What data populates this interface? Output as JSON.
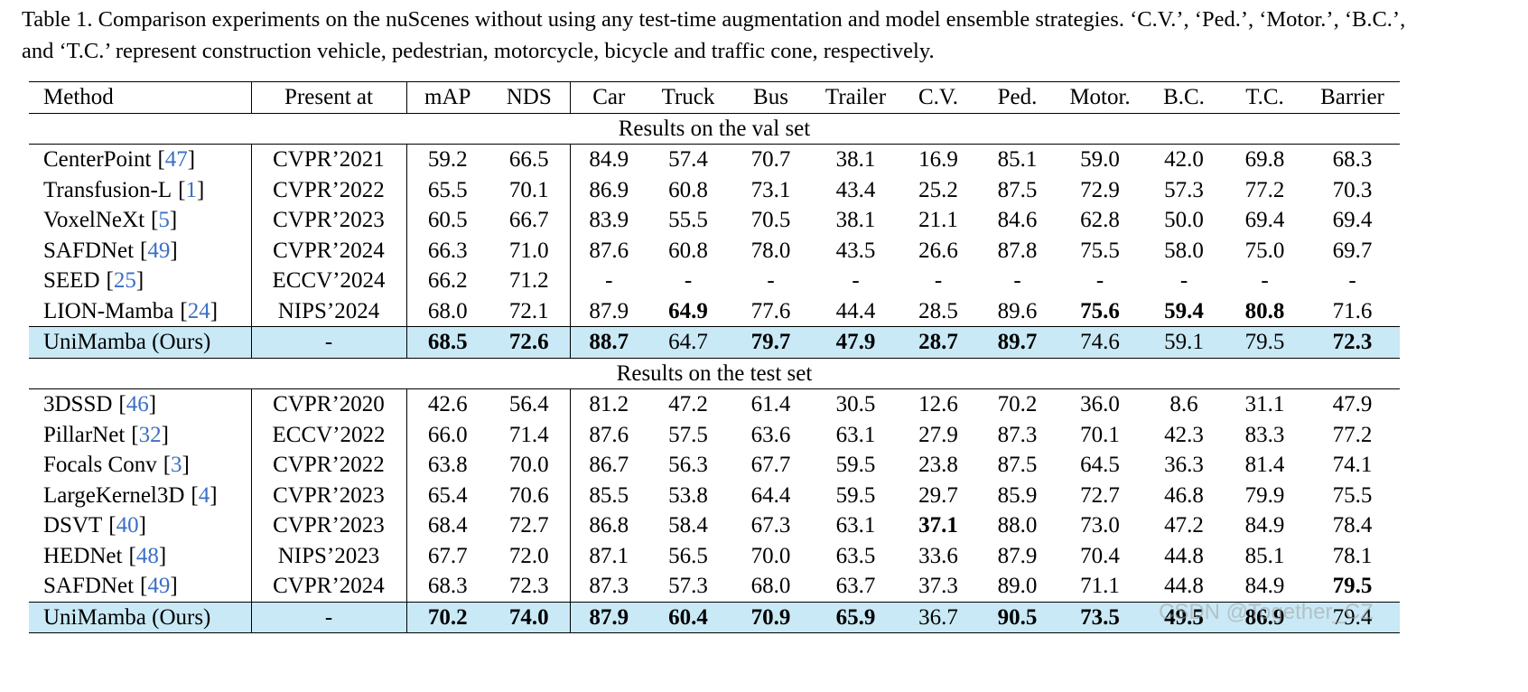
{
  "caption": "Table 1. Comparison experiments on the nuScenes without using any test-time augmentation and model ensemble strategies. ‘C.V.’, ‘Ped.’, ‘Motor.’, ‘B.C.’, and ‘T.C.’ represent construction vehicle, pedestrian, motorcycle, bicycle and traffic cone, respectively.",
  "table": {
    "cite_brackets": [
      "[",
      "]"
    ],
    "cite_color": "#3a6fc4",
    "highlight_color": "#c9e9f6",
    "header": [
      "Method",
      "Present at",
      "mAP",
      "NDS",
      "Car",
      "Truck",
      "Bus",
      "Trailer",
      "C.V.",
      "Ped.",
      "Motor.",
      "B.C.",
      "T.C.",
      "Barrier"
    ],
    "sections": [
      {
        "title": "Results on the val set",
        "rows": [
          {
            "method": "CenterPoint",
            "cite": "47",
            "venue": "CVPR’2021",
            "values": [
              "59.2",
              "66.5",
              "84.9",
              "57.4",
              "70.7",
              "38.1",
              "16.9",
              "85.1",
              "59.0",
              "42.0",
              "69.8",
              "68.3"
            ],
            "bold": []
          },
          {
            "method": "Transfusion-L",
            "cite": "1",
            "venue": "CVPR’2022",
            "values": [
              "65.5",
              "70.1",
              "86.9",
              "60.8",
              "73.1",
              "43.4",
              "25.2",
              "87.5",
              "72.9",
              "57.3",
              "77.2",
              "70.3"
            ],
            "bold": []
          },
          {
            "method": "VoxelNeXt",
            "cite": "5",
            "venue": "CVPR’2023",
            "values": [
              "60.5",
              "66.7",
              "83.9",
              "55.5",
              "70.5",
              "38.1",
              "21.1",
              "84.6",
              "62.8",
              "50.0",
              "69.4",
              "69.4"
            ],
            "bold": []
          },
          {
            "method": "SAFDNet",
            "cite": "49",
            "venue": "CVPR’2024",
            "values": [
              "66.3",
              "71.0",
              "87.6",
              "60.8",
              "78.0",
              "43.5",
              "26.6",
              "87.8",
              "75.5",
              "58.0",
              "75.0",
              "69.7"
            ],
            "bold": []
          },
          {
            "method": "SEED",
            "cite": "25",
            "venue": "ECCV’2024",
            "values": [
              "66.2",
              "71.2",
              "-",
              "-",
              "-",
              "-",
              "-",
              "-",
              "-",
              "-",
              "-",
              "-"
            ],
            "bold": []
          },
          {
            "method": "LION-Mamba",
            "cite": "24",
            "venue": "NIPS’2024",
            "values": [
              "68.0",
              "72.1",
              "87.9",
              "64.9",
              "77.6",
              "44.4",
              "28.5",
              "89.6",
              "75.6",
              "59.4",
              "80.8",
              "71.6"
            ],
            "bold": [
              3,
              8,
              9,
              10
            ]
          },
          {
            "method": "UniMamba (Ours)",
            "venue": "-",
            "values": [
              "68.5",
              "72.6",
              "88.7",
              "64.7",
              "79.7",
              "47.9",
              "28.7",
              "89.7",
              "74.6",
              "59.1",
              "79.5",
              "72.3"
            ],
            "bold": [
              0,
              1,
              2,
              4,
              5,
              6,
              7,
              11
            ],
            "highlight": true
          }
        ]
      },
      {
        "title": "Results on the test set",
        "rows": [
          {
            "method": "3DSSD",
            "cite": "46",
            "venue": "CVPR’2020",
            "values": [
              "42.6",
              "56.4",
              "81.2",
              "47.2",
              "61.4",
              "30.5",
              "12.6",
              "70.2",
              "36.0",
              "8.6",
              "31.1",
              "47.9"
            ],
            "bold": []
          },
          {
            "method": "PillarNet",
            "cite": "32",
            "venue": "ECCV’2022",
            "values": [
              "66.0",
              "71.4",
              "87.6",
              "57.5",
              "63.6",
              "63.1",
              "27.9",
              "87.3",
              "70.1",
              "42.3",
              "83.3",
              "77.2"
            ],
            "bold": []
          },
          {
            "method": "Focals Conv",
            "cite": "3",
            "venue": "CVPR’2022",
            "values": [
              "63.8",
              "70.0",
              "86.7",
              "56.3",
              "67.7",
              "59.5",
              "23.8",
              "87.5",
              "64.5",
              "36.3",
              "81.4",
              "74.1"
            ],
            "bold": []
          },
          {
            "method": "LargeKernel3D",
            "cite": "4",
            "venue": "CVPR’2023",
            "values": [
              "65.4",
              "70.6",
              "85.5",
              "53.8",
              "64.4",
              "59.5",
              "29.7",
              "85.9",
              "72.7",
              "46.8",
              "79.9",
              "75.5"
            ],
            "bold": []
          },
          {
            "method": "DSVT",
            "cite": "40",
            "venue": "CVPR’2023",
            "values": [
              "68.4",
              "72.7",
              "86.8",
              "58.4",
              "67.3",
              "63.1",
              "37.1",
              "88.0",
              "73.0",
              "47.2",
              "84.9",
              "78.4"
            ],
            "bold": [
              6
            ]
          },
          {
            "method": "HEDNet",
            "cite": "48",
            "venue": "NIPS’2023",
            "values": [
              "67.7",
              "72.0",
              "87.1",
              "56.5",
              "70.0",
              "63.5",
              "33.6",
              "87.9",
              "70.4",
              "44.8",
              "85.1",
              "78.1"
            ],
            "bold": []
          },
          {
            "method": "SAFDNet",
            "cite": "49",
            "venue": "CVPR’2024",
            "values": [
              "68.3",
              "72.3",
              "87.3",
              "57.3",
              "68.0",
              "63.7",
              "37.3",
              "89.0",
              "71.1",
              "44.8",
              "84.9",
              "79.5"
            ],
            "bold": [
              11
            ]
          },
          {
            "method": "UniMamba (Ours)",
            "venue": "-",
            "values": [
              "70.2",
              "74.0",
              "87.9",
              "60.4",
              "70.9",
              "65.9",
              "36.7",
              "90.5",
              "73.5",
              "49.5",
              "86.9",
              "79.4"
            ],
            "bold": [
              0,
              1,
              2,
              3,
              4,
              5,
              7,
              8,
              9,
              10
            ],
            "highlight": true
          }
        ]
      }
    ]
  },
  "watermark": "CSDN @Together_CZ"
}
